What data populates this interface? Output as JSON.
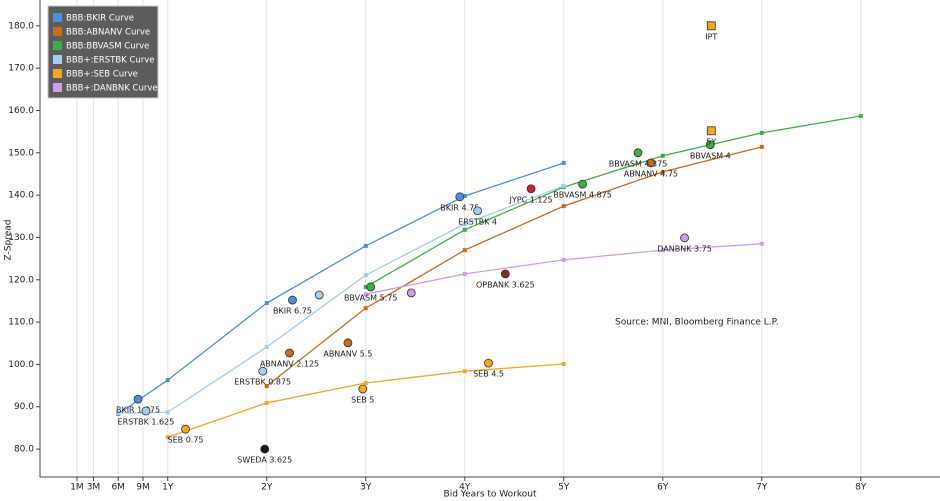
{
  "chart_data": {
    "type": "scatter",
    "x_label": "Bid Years to Workout",
    "y_label": "Z-Spread",
    "annotation": "Source: MNI, Bloomberg Finance L.P.",
    "xlim": [
      -0.29,
      8.8
    ],
    "ylim": [
      73.4,
      186.1
    ],
    "xticks": [
      {
        "value": 0.0833,
        "label": "1M"
      },
      {
        "value": 0.25,
        "label": "3M"
      },
      {
        "value": 0.5,
        "label": "6M"
      },
      {
        "value": 0.75,
        "label": "9M"
      },
      {
        "value": 1,
        "label": "1Y"
      },
      {
        "value": 2,
        "label": "2Y"
      },
      {
        "value": 3,
        "label": "3Y"
      },
      {
        "value": 4,
        "label": "4Y"
      },
      {
        "value": 5,
        "label": "5Y"
      },
      {
        "value": 6,
        "label": "6Y"
      },
      {
        "value": 7,
        "label": "7Y"
      },
      {
        "value": 8,
        "label": "8Y"
      }
    ],
    "yticks": [
      {
        "value": 80,
        "label": "80.0"
      },
      {
        "value": 90,
        "label": "90.0"
      },
      {
        "value": 100,
        "label": "100.0"
      },
      {
        "value": 110,
        "label": "110.0"
      },
      {
        "value": 120,
        "label": "120.0"
      },
      {
        "value": 130,
        "label": "130.0"
      },
      {
        "value": 140,
        "label": "140.0"
      },
      {
        "value": 150,
        "label": "150.0"
      },
      {
        "value": 160,
        "label": "160.0"
      },
      {
        "value": 170,
        "label": "170.0"
      },
      {
        "value": 180,
        "label": "180.0"
      }
    ],
    "grid": true,
    "legend": "upper left",
    "series": [
      {
        "name": "BBB:BKIR Curve",
        "color": "#4a8fe0",
        "x": [
          0.5,
          1,
          2,
          3,
          4,
          5
        ],
        "values": [
          88.3,
          96.3,
          114.5,
          128,
          139.8,
          147.6
        ]
      },
      {
        "name": "BBB:ABNANV Curve",
        "color": "#cc6a1e",
        "x": [
          2,
          3,
          4,
          5,
          6,
          7
        ],
        "values": [
          94.9,
          113.3,
          127,
          137.4,
          145.5,
          151.4
        ]
      },
      {
        "name": "BBB:BBVASM Curve",
        "color": "#3cb043",
        "x": [
          3,
          4,
          5,
          6,
          7,
          8
        ],
        "values": [
          118.3,
          131.8,
          141.9,
          149.3,
          154.7,
          158.7
        ]
      },
      {
        "name": "BBB+:ERSTBK Curve",
        "color": "#a3cdf2",
        "x": [
          0.5,
          1,
          2,
          3,
          4,
          5
        ],
        "values": [
          88.5,
          88.7,
          104.1,
          121.1,
          133.2,
          142.2
        ]
      },
      {
        "name": "BBB+:SEB Curve",
        "color": "#f5a623",
        "x": [
          1,
          2,
          3,
          4,
          5
        ],
        "values": [
          82.8,
          90.9,
          95.6,
          98.4,
          100.1
        ]
      },
      {
        "name": "BBB+:DANBNK Curve",
        "color": "#d49be8",
        "x": [
          3,
          4,
          5,
          6,
          7
        ],
        "values": [
          116.6,
          121.4,
          124.7,
          127,
          128.5
        ]
      }
    ],
    "bonds": [
      {
        "label": "BKIR 4.75",
        "color": "#4a8fe0",
        "x": 3.95,
        "y": 139.6
      },
      {
        "label": "BKIR 6.75",
        "color": "#4a8fe0",
        "x": 2.26,
        "y": 115.2
      },
      {
        "label": "BKIR 1.875",
        "color": "#4a8fe0",
        "x": 0.7,
        "y": 91.8
      },
      {
        "label": "ERSTBK 4",
        "color": "#a3cdf2",
        "x": 4.13,
        "y": 136.3
      },
      {
        "label": "ERSTBK 0.875",
        "color": "#a3cdf2",
        "x": 1.96,
        "y": 98.4
      },
      {
        "label": "ERSTBK 1.625",
        "color": "#a3cdf2",
        "x": 0.78,
        "y": 89
      },
      {
        "color": "#a3cdf2",
        "x": 2.53,
        "y": 116.4
      },
      {
        "label": "ABNANV 2.125",
        "color": "#cc6a1e",
        "x": 2.23,
        "y": 102.7
      },
      {
        "label": "ABNANV 5.5",
        "color": "#cc6a1e",
        "x": 2.82,
        "y": 105.1
      },
      {
        "label": "ABNANV 4.75",
        "color": "#cc6a1e",
        "x": 5.88,
        "y": 147.6
      },
      {
        "label": "BBVASM 5.75",
        "color": "#3cb043",
        "x": 3.05,
        "y": 118.3
      },
      {
        "label": "BBVASM 4.875",
        "color": "#3cb043",
        "x": 5.19,
        "y": 142.6
      },
      {
        "label": "BBVASM 4.375",
        "color": "#3cb043",
        "x": 5.75,
        "y": 150
      },
      {
        "label": "BBVASM 4",
        "color": "#3cb043",
        "x": 6.48,
        "y": 151.9
      },
      {
        "label": "JYPC 1.125",
        "color": "#d0202a",
        "x": 4.67,
        "y": 141.5
      },
      {
        "label": "OPBANK 3.625",
        "color": "#8b2a1e",
        "x": 4.41,
        "y": 121.4
      },
      {
        "label": "DANBNK 3.75",
        "color": "#d49be8",
        "x": 6.22,
        "y": 129.9
      },
      {
        "color": "#d49be8",
        "x": 3.46,
        "y": 116.9
      },
      {
        "label": "SEB 0.75",
        "color": "#f5a623",
        "x": 1.18,
        "y": 84.7
      },
      {
        "label": "SEB 5",
        "color": "#f5a623",
        "x": 2.97,
        "y": 94.2
      },
      {
        "label": "SEB 4.5",
        "color": "#f5a623",
        "x": 4.24,
        "y": 100.3
      },
      {
        "label": "SWEDA 3.625",
        "color": "#1a1a1a",
        "x": 1.98,
        "y": 80
      },
      {
        "label": "IPT",
        "color": "#f5a623",
        "x": 6.49,
        "y": 180,
        "shape": "square"
      },
      {
        "label": "5Y",
        "color": "#f5a623",
        "x": 6.49,
        "y": 155.2,
        "shape": "square"
      }
    ]
  }
}
